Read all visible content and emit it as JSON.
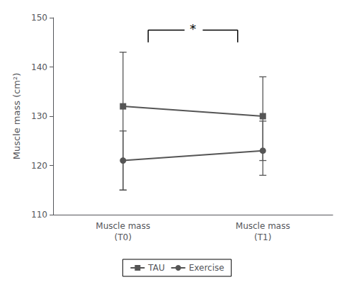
{
  "chart_data": {
    "type": "line",
    "categories": [
      "Muscle mass\n(T0)",
      "Muscle mass\n(T1)"
    ],
    "series": [
      {
        "name": "TAU",
        "color": "#555555",
        "marker": "square",
        "values": [
          132,
          130
        ],
        "yerr_low": [
          17,
          9
        ],
        "yerr_high": [
          11,
          8
        ]
      },
      {
        "name": "Exercise",
        "color": "#555555",
        "marker": "circle",
        "values": [
          121,
          123
        ],
        "yerr_low": [
          6,
          5
        ],
        "yerr_high": [
          6,
          6
        ]
      }
    ],
    "ylabel": "Muscle mass (cm²)",
    "ylim": [
      110,
      150
    ],
    "yticks": [
      110,
      120,
      130,
      140,
      150
    ],
    "annotations": [
      {
        "text": "*",
        "x": 0.5,
        "y": 147.8
      }
    ],
    "bracket": {
      "y": 147.5,
      "drop": 2.5,
      "x": [
        0.18,
        0.44,
        0.57,
        0.82
      ]
    },
    "legend": "bottom",
    "grid": false
  }
}
